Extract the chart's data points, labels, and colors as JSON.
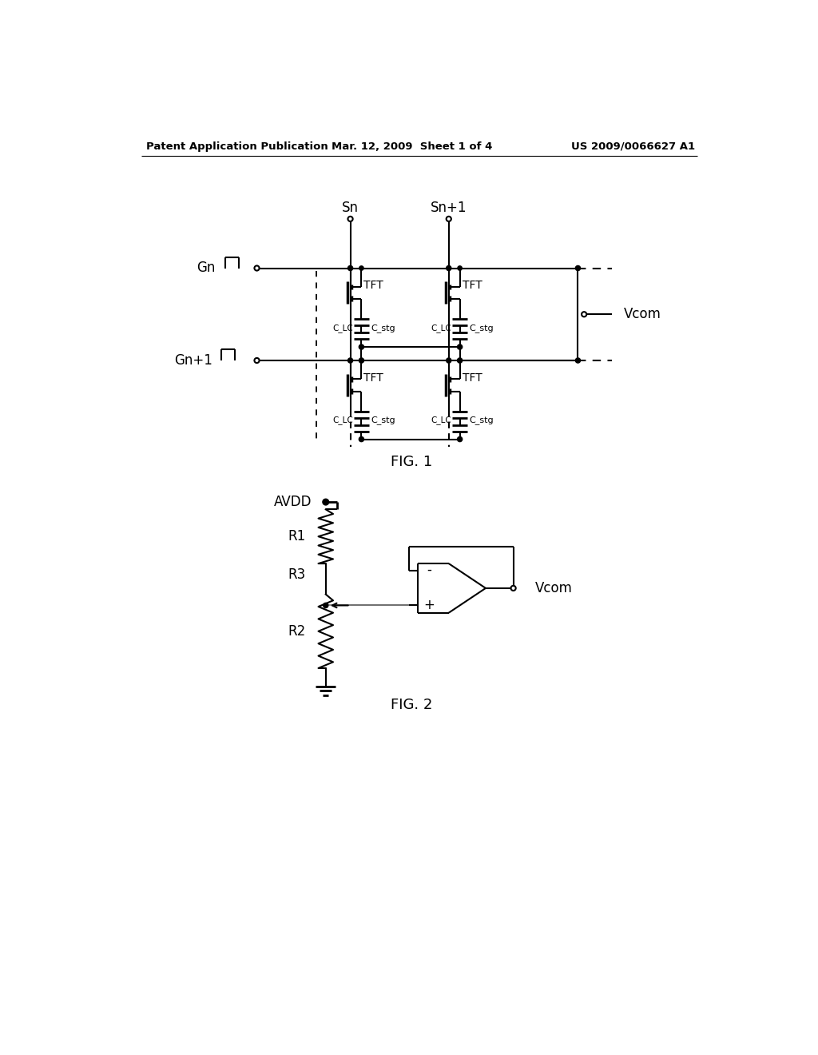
{
  "title_left": "Patent Application Publication",
  "title_center": "Mar. 12, 2009  Sheet 1 of 4",
  "title_right": "US 2009/0066627 A1",
  "fig1_label": "FIG. 1",
  "fig2_label": "FIG. 2",
  "background_color": "#ffffff",
  "line_color": "#000000",
  "text_color": "#000000"
}
